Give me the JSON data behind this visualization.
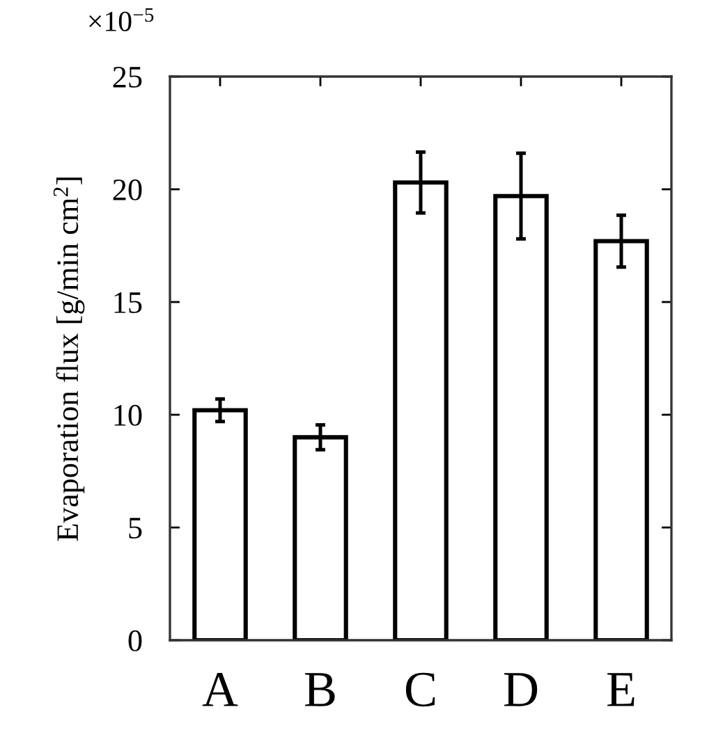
{
  "chart_data": {
    "type": "bar",
    "ylabel": "Evaporation flux [g/min cm$^{2}$]",
    "annotations": [
      "×10$^{−5}$"
    ],
    "categories": [
      "A",
      "B",
      "C",
      "D",
      "E"
    ],
    "values": [
      10.2,
      9.0,
      20.3,
      19.7,
      17.7
    ],
    "errors": [
      0.5,
      0.55,
      1.35,
      1.9,
      1.15
    ],
    "color": "#ffffff",
    "ylim": [
      0,
      25
    ],
    "yticks": [
      0,
      5,
      10,
      15,
      20,
      25
    ],
    "grid": false,
    "legend": false
  }
}
